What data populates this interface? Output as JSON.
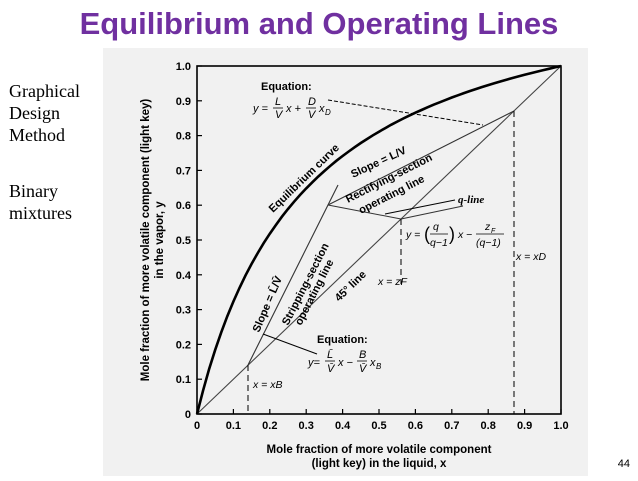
{
  "slide": {
    "title": "Equilibrium and Operating Lines",
    "side_note": [
      "Graphical",
      "Design",
      "Method",
      "",
      "Binary",
      "mixtures"
    ],
    "page_number": "44"
  },
  "diagram": {
    "y_axis_label_line1": "Mole fraction of more volatile component (light key)",
    "y_axis_label_line2": "in the vapor, y",
    "x_axis_label_line1": "Mole fraction of more volatile component",
    "x_axis_label_line2": "(light key) in the liquid, x",
    "ticks": [
      "0",
      "0.1",
      "0.2",
      "0.3",
      "0.4",
      "0.5",
      "0.6",
      "0.7",
      "0.8",
      "0.9",
      "1.0"
    ],
    "label_equilibrium_curve": "Equilibrium curve",
    "label_slope_rect": "Slope = L/V",
    "label_rect_line1": "Rectifying-section",
    "label_rect_line2": "operating line",
    "label_strip_line1": "Stripping-section",
    "label_strip_line2": "operating line",
    "label_slope_strip": "Slope = L̄/V̄",
    "label_45": "45° line",
    "label_q_line": "q-line",
    "label_equation_top": "Equation:",
    "label_equation_bottom": "Equation:",
    "label_x_d": "x = xD",
    "label_x_f": "x = zF",
    "label_x_b": "x = xB"
  },
  "points": {
    "x_b": 0.14,
    "z_f": 0.56,
    "x_d": 0.87,
    "intersection_x": 0.36,
    "intersection_y": 0.6
  }
}
